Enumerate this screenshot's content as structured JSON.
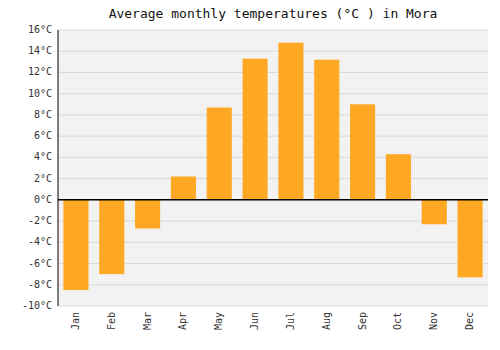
{
  "chart_data": {
    "type": "bar",
    "title": "Average monthly temperatures (°C ) in Mora",
    "categories": [
      "Jan",
      "Feb",
      "Mar",
      "Apr",
      "May",
      "Jun",
      "Jul",
      "Aug",
      "Sep",
      "Oct",
      "Nov",
      "Dec"
    ],
    "values": [
      -8.5,
      -7.0,
      -2.7,
      2.2,
      8.7,
      13.3,
      14.8,
      13.2,
      9.0,
      4.3,
      -2.3,
      -7.3
    ],
    "color": "#FFA824",
    "ylim": [
      -10,
      16
    ],
    "yticks": [
      {
        "value": -10,
        "label": "-10°C"
      },
      {
        "value": -8,
        "label": "-8°C"
      },
      {
        "value": -6,
        "label": "-6°C"
      },
      {
        "value": -4,
        "label": "-4°C"
      },
      {
        "value": -2,
        "label": "-2°C"
      },
      {
        "value": 0,
        "label": "0°C"
      },
      {
        "value": 2,
        "label": "2°C"
      },
      {
        "value": 4,
        "label": "4°C"
      },
      {
        "value": 6,
        "label": "6°C"
      },
      {
        "value": 8,
        "label": "8°C"
      },
      {
        "value": 10,
        "label": "10°C"
      },
      {
        "value": 12,
        "label": "12°C"
      },
      {
        "value": 14,
        "label": "14°C"
      },
      {
        "value": 16,
        "label": "16°C"
      }
    ],
    "grid": true
  }
}
